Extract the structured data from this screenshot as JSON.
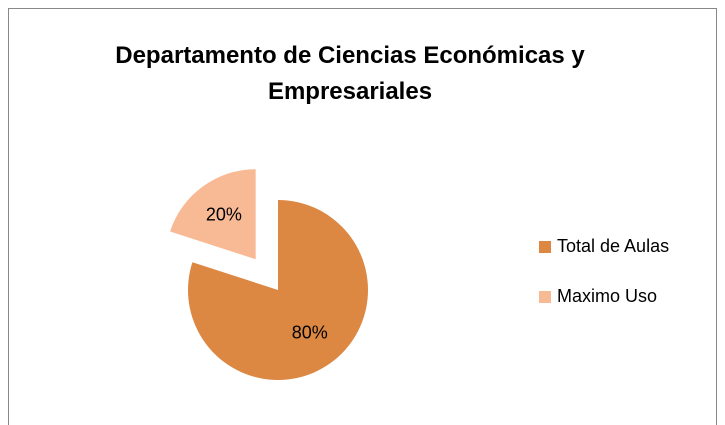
{
  "chart_data": {
    "type": "pie",
    "title": "Departamento de Ciencias Económicas y Empresariales",
    "categories": [
      "Total de Aulas",
      "Maximo Uso"
    ],
    "values": [
      80,
      20
    ],
    "value_labels": [
      "80%",
      "20%"
    ],
    "colors": [
      "#dc8742",
      "#f8b995"
    ],
    "exploded": [
      false,
      true
    ],
    "legend": "right"
  }
}
